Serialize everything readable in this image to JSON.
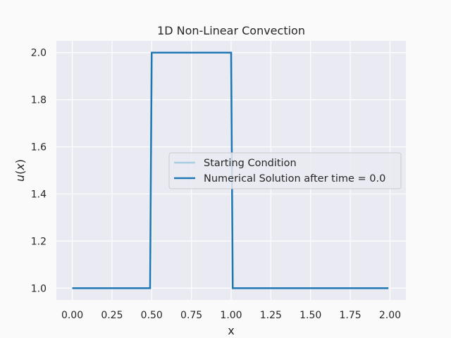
{
  "chart_data": {
    "type": "line",
    "title": "1D Non-Linear Convection",
    "xlabel": "x",
    "ylabel_var": "u",
    "ylabel_arg": "x",
    "xlim": [
      -0.1,
      2.1
    ],
    "ylim": [
      0.95,
      2.05
    ],
    "xticks": [
      "0.00",
      "0.25",
      "0.50",
      "0.75",
      "1.00",
      "1.25",
      "1.50",
      "1.75",
      "2.00"
    ],
    "yticks": [
      "1.0",
      "1.2",
      "1.4",
      "1.6",
      "1.8",
      "2.0"
    ],
    "grid": true,
    "legend_position": "center-right",
    "series": [
      {
        "name": "Starting Condition",
        "color": "#a6cee3",
        "x": [
          0.0,
          0.49,
          0.5,
          1.0,
          1.01,
          1.99
        ],
        "y": [
          1.0,
          1.0,
          2.0,
          2.0,
          1.0,
          1.0
        ]
      },
      {
        "name": "Numerical Solution after time = 0.0",
        "color": "#1f78b4",
        "x": [
          0.0,
          0.49,
          0.5,
          1.0,
          1.01,
          1.99
        ],
        "y": [
          1.0,
          1.0,
          2.0,
          2.0,
          1.0,
          1.0
        ]
      }
    ]
  }
}
